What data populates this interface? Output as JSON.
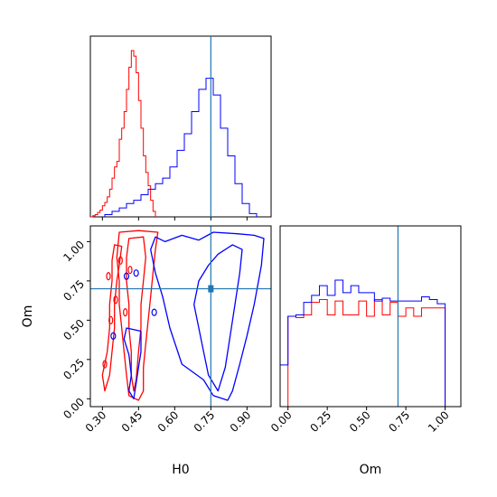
{
  "chart_data": {
    "type": "corner",
    "parameters": [
      "H0",
      "Om"
    ],
    "truths": {
      "H0": 0.75,
      "Om": 0.7
    },
    "colors": {
      "series_red": "#ff0000",
      "series_blue": "#0000ff",
      "truth": "#1f77b4"
    },
    "axes": {
      "H0": {
        "label": "H0",
        "range": [
          0.25,
          1.0
        ],
        "ticks": [
          "0.30",
          "0.45",
          "0.60",
          "0.75",
          "0.90"
        ]
      },
      "Om": {
        "label": "Om",
        "range": [
          -0.05,
          1.1
        ],
        "ticks": [
          "0.00",
          "0.25",
          "0.50",
          "0.75",
          "1.00"
        ]
      }
    },
    "hist_H0": {
      "bin_edges": [
        0.25,
        0.26,
        0.27,
        0.28,
        0.29,
        0.3,
        0.31,
        0.32,
        0.33,
        0.34,
        0.35,
        0.36,
        0.37,
        0.38,
        0.39,
        0.4,
        0.41,
        0.42,
        0.43,
        0.44,
        0.45,
        0.46,
        0.47,
        0.48,
        0.49,
        0.5,
        0.51,
        0.52
      ],
      "series": [
        {
          "color": "red",
          "counts": [
            0,
            1,
            2,
            4,
            6,
            10,
            13,
            18,
            25,
            35,
            45,
            50,
            70,
            80,
            95,
            115,
            135,
            150,
            145,
            130,
            105,
            80,
            55,
            40,
            28,
            15,
            5
          ]
        }
      ],
      "blue": {
        "bin_edges": [
          0.31,
          0.34,
          0.37,
          0.4,
          0.43,
          0.46,
          0.49,
          0.52,
          0.55,
          0.58,
          0.61,
          0.64,
          0.67,
          0.7,
          0.73,
          0.76,
          0.79,
          0.82,
          0.85,
          0.88,
          0.91,
          0.94
        ],
        "counts": [
          2,
          5,
          8,
          12,
          15,
          20,
          25,
          30,
          35,
          45,
          60,
          75,
          95,
          115,
          125,
          110,
          80,
          55,
          30,
          12,
          3
        ]
      }
    },
    "hist_Om": {
      "red": {
        "bin_edges": [
          0.0,
          0.05,
          0.1,
          0.15,
          0.2,
          0.25,
          0.3,
          0.35,
          0.4,
          0.45,
          0.5,
          0.55,
          0.6,
          0.65,
          0.7,
          0.75,
          0.8,
          0.85,
          0.9,
          0.95,
          1.0
        ],
        "counts": [
          65,
          64,
          66,
          75,
          77,
          66,
          76,
          66,
          66,
          76,
          65,
          77,
          66,
          75,
          65,
          71,
          65,
          71,
          71,
          71
        ]
      },
      "blue": {
        "bin_edges": [
          -0.05,
          0.0,
          0.05,
          0.1,
          0.15,
          0.2,
          0.25,
          0.3,
          0.35,
          0.4,
          0.45,
          0.5,
          0.55,
          0.6,
          0.65,
          0.7,
          0.75,
          0.8,
          0.85,
          0.9,
          0.95,
          1.0,
          1.05
        ],
        "counts": [
          30,
          65,
          66,
          75,
          80,
          87,
          80,
          91,
          82,
          87,
          82,
          82,
          76,
          78,
          76,
          76,
          76,
          76,
          79,
          77,
          74,
          0
        ]
      }
    }
  }
}
